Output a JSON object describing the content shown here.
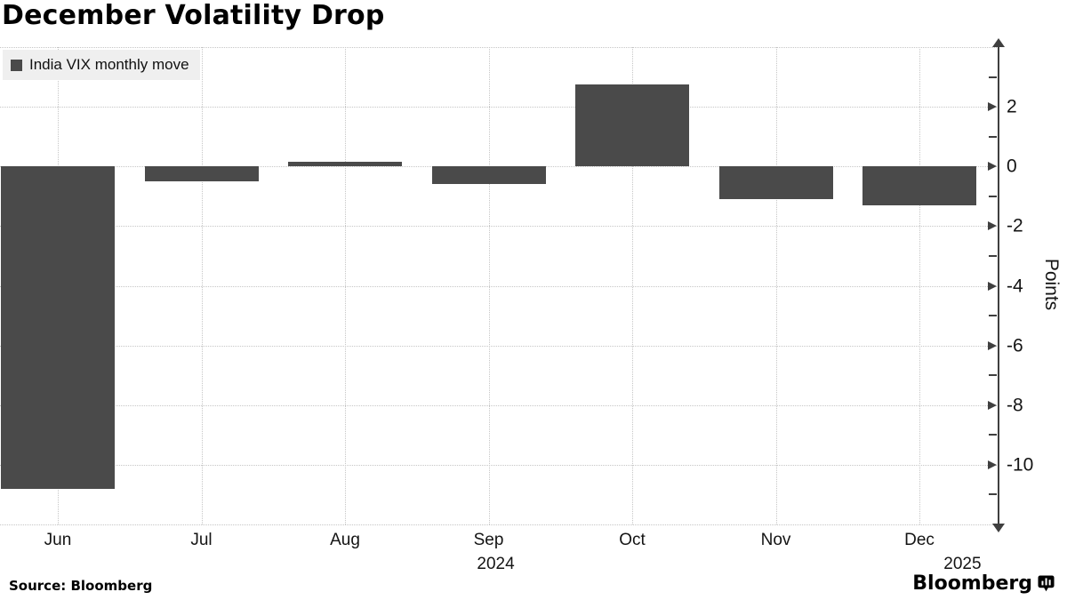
{
  "chart_data": {
    "type": "bar",
    "title": "December Volatility Drop",
    "categories": [
      "Jun",
      "Jul",
      "Aug",
      "Sep",
      "Oct",
      "Nov",
      "Dec"
    ],
    "series": [
      {
        "name": "India VIX monthly move",
        "values": [
          -10.8,
          -0.5,
          0.15,
          -0.6,
          2.75,
          -1.1,
          -1.3
        ]
      }
    ],
    "xlabel": "",
    "ylabel": "Points",
    "ylim": [
      -12,
      4
    ],
    "y_axis_side": "right",
    "y_major_ticks": [
      2,
      0,
      -2,
      -4,
      -6,
      -8,
      -10
    ],
    "gridline_step": 2,
    "grid": true,
    "legend_position": "top-left",
    "year_labels": [
      {
        "text": "2024",
        "position_index": 3.05
      },
      {
        "text": "2025",
        "position_index": 6.3
      }
    ]
  },
  "footer": {
    "source": "Source: Bloomberg",
    "logo_text": "Bloomberg",
    "logo_icon": "bloomberg-terminal-icon"
  },
  "colors": {
    "bar": "#4a4a4a",
    "grid": "#c6c6c6",
    "axis": "#3f3f3f",
    "legend_bg": "#efefef"
  }
}
